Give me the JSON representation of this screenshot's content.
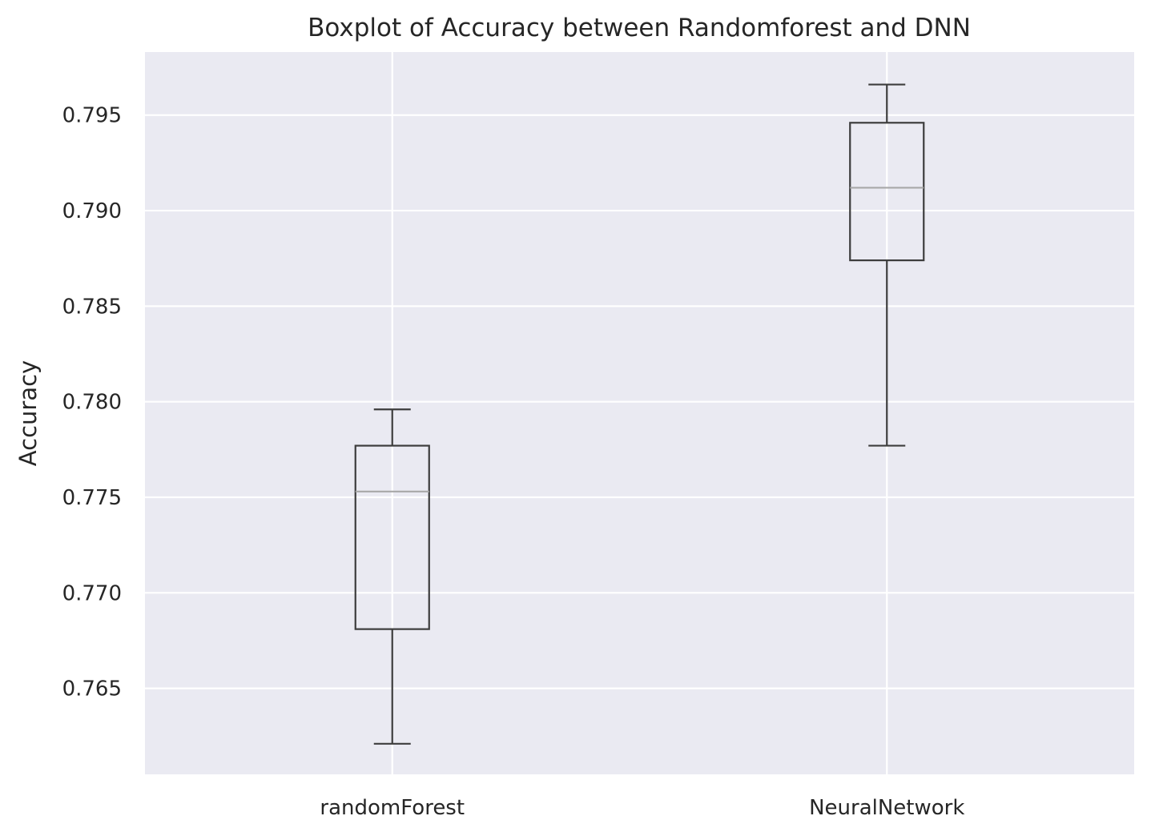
{
  "chart_data": {
    "type": "boxplot",
    "title": "Boxplot of Accuracy between Randomforest and DNN",
    "xlabel": "",
    "ylabel": "Accuracy",
    "ylim": [
      0.7605,
      0.7983
    ],
    "yticks": [
      0.765,
      0.77,
      0.775,
      0.78,
      0.785,
      0.79,
      0.795
    ],
    "ytick_labels": [
      "0.765",
      "0.770",
      "0.775",
      "0.780",
      "0.785",
      "0.790",
      "0.795"
    ],
    "grid": true,
    "categories": [
      "randomForest",
      "NeuralNetwork"
    ],
    "boxes": [
      {
        "category": "randomForest",
        "whisker_low": 0.7621,
        "q1": 0.7681,
        "median": 0.7753,
        "q3": 0.7777,
        "whisker_high": 0.7796
      },
      {
        "category": "NeuralNetwork",
        "whisker_low": 0.7777,
        "q1": 0.7874,
        "median": 0.7912,
        "q3": 0.7946,
        "whisker_high": 0.7966
      }
    ],
    "colors": {
      "plot_background": "#eaeaf2",
      "grid": "#ffffff",
      "box_line": "#3d3d3d",
      "median_line": "#a8a8a8",
      "text": "#262626"
    }
  }
}
